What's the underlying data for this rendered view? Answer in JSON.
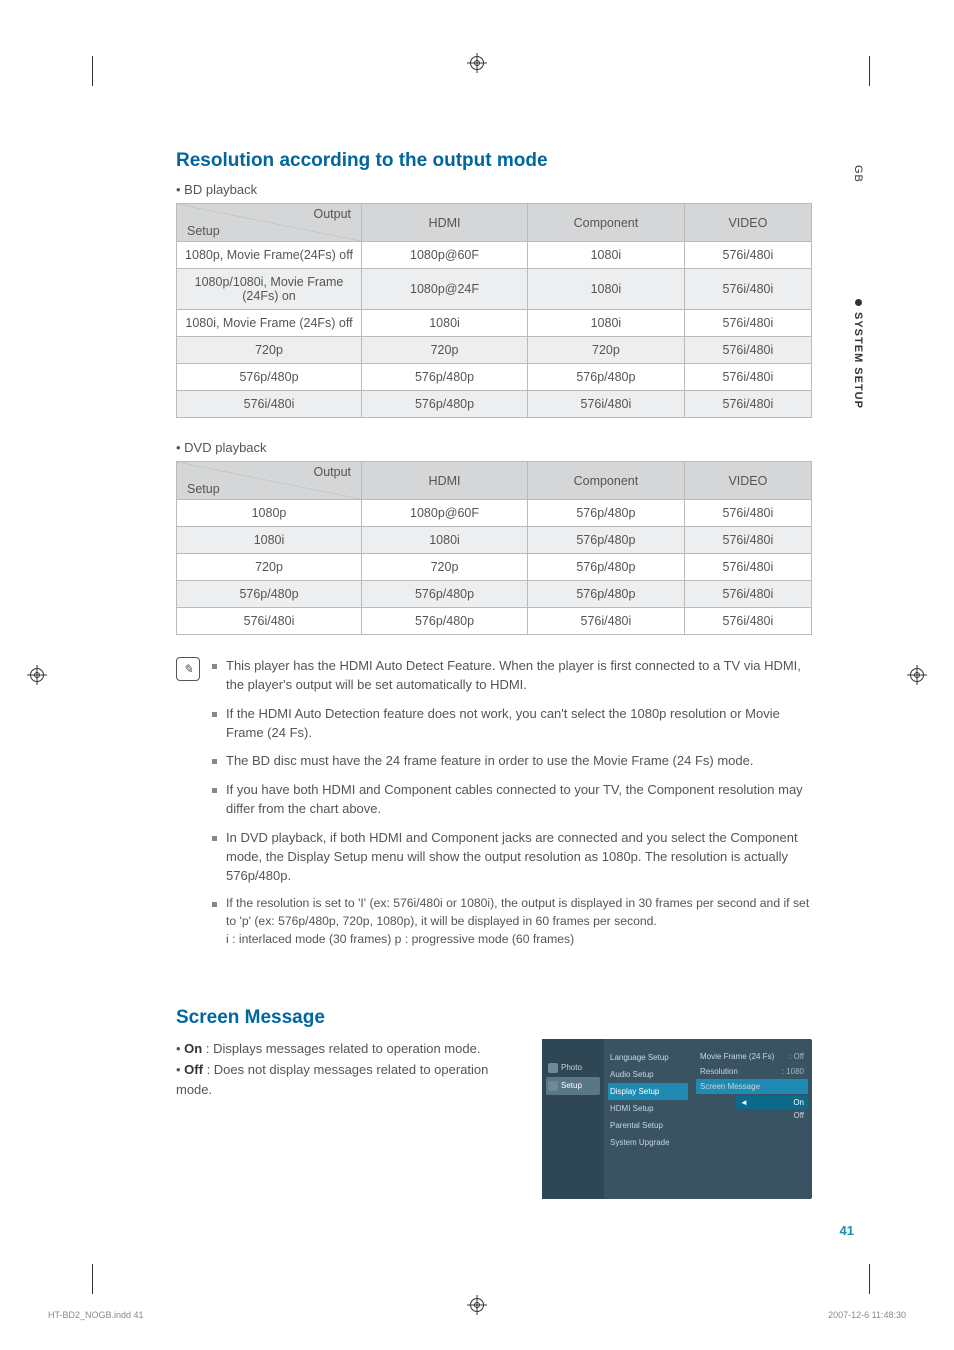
{
  "heading1": "Resolution according to the output mode",
  "bd_label": "• BD playback",
  "dvd_label": "• DVD playback",
  "table_header": {
    "diag_top": "Output",
    "diag_bot": "Setup",
    "hdmi": "HDMI",
    "component": "Component",
    "video": "VIDEO"
  },
  "bd_rows": [
    {
      "setup": "1080p, Movie Frame(24Fs) off",
      "hdmi": "1080p@60F",
      "component": "1080i",
      "video": "576i/480i"
    },
    {
      "setup": "1080p/1080i, Movie Frame (24Fs) on",
      "hdmi": "1080p@24F",
      "component": "1080i",
      "video": "576i/480i"
    },
    {
      "setup": "1080i, Movie Frame (24Fs) off",
      "hdmi": "1080i",
      "component": "1080i",
      "video": "576i/480i"
    },
    {
      "setup": "720p",
      "hdmi": "720p",
      "component": "720p",
      "video": "576i/480i"
    },
    {
      "setup": "576p/480p",
      "hdmi": "576p/480p",
      "component": "576p/480p",
      "video": "576i/480i"
    },
    {
      "setup": "576i/480i",
      "hdmi": "576p/480p",
      "component": "576i/480i",
      "video": "576i/480i"
    }
  ],
  "dvd_rows": [
    {
      "setup": "1080p",
      "hdmi": "1080p@60F",
      "component": "576p/480p",
      "video": "576i/480i"
    },
    {
      "setup": "1080i",
      "hdmi": "1080i",
      "component": "576p/480p",
      "video": "576i/480i"
    },
    {
      "setup": "720p",
      "hdmi": "720p",
      "component": "576p/480p",
      "video": "576i/480i"
    },
    {
      "setup": "576p/480p",
      "hdmi": "576p/480p",
      "component": "576p/480p",
      "video": "576i/480i"
    },
    {
      "setup": "576i/480i",
      "hdmi": "576p/480p",
      "component": "576i/480i",
      "video": "576i/480i"
    }
  ],
  "notes": [
    "This player has the HDMI Auto Detect Feature. When the player is first connected to a TV via HDMI, the player's output will be set automatically to HDMI.",
    "If the HDMI Auto Detection feature does not work, you can't select the 1080p resolution or Movie Frame (24 Fs).",
    "The BD disc must have the 24 frame feature in order to use the Movie Frame (24 Fs) mode.",
    "If you have both HDMI and Component cables connected to your TV, the Component resolution may differ from the chart above.",
    "In DVD playback, if both HDMI and Component jacks are connected and you select the Component mode, the Display Setup menu will show the output resolution as 1080p. The resolution is actually 576p/480p."
  ],
  "note6_line1": "If the resolution is set to 'I' (ex: 576i/480i or 1080i), the output is displayed in 30 frames per second and if set to 'p' (ex: 576p/480p, 720p, 1080p), it will be displayed in 60 frames per second.",
  "note6_i": "i : interlaced mode (30 frames)",
  "note6_p": "p : progressive mode (60 frames)",
  "heading2": "Screen Message",
  "sm_on": "On",
  "sm_on_txt": " : Displays messages related to operation mode.",
  "sm_off": "Off",
  "sm_off_txt": " : Does not display messages related to operation mode.",
  "osd": {
    "left": {
      "photo": "Photo",
      "setup": "Setup"
    },
    "mid": [
      "Language Setup",
      "Audio Setup",
      "Display Setup",
      "HDMI Setup",
      "Parental Setup",
      "System Upgrade"
    ],
    "right": [
      {
        "label": "Movie Frame (24 Fs)",
        "val": ": Off"
      },
      {
        "label": "Resolution",
        "val": ": 1080"
      },
      {
        "label": "Screen Message",
        "val": ""
      }
    ],
    "opts": {
      "on": "On",
      "off": "Off",
      "caret": "◄"
    }
  },
  "side": {
    "gb": "GB",
    "section": "SYSTEM SETUP"
  },
  "page_num": "41",
  "footer": {
    "left": "HT-BD2_NOGB.indd   41",
    "right": "2007-12-6   11:48:30"
  },
  "note_icon_glyph": "✎"
}
